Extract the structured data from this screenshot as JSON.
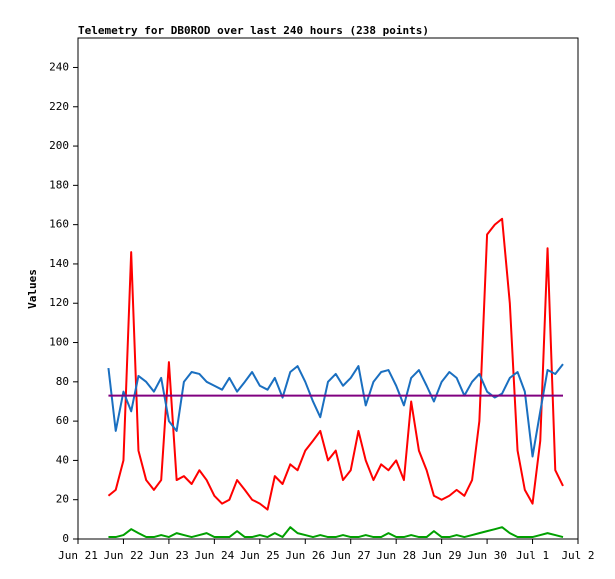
{
  "chart_data": {
    "type": "line",
    "title": "Telemetry for DB0ROD over last 240 hours (238 points)",
    "ylabel": "Values",
    "xlim": [
      0,
      11
    ],
    "xticks": [
      {
        "value": 0,
        "label": "Jun 21"
      },
      {
        "value": 1,
        "label": "Jun 22"
      },
      {
        "value": 2,
        "label": "Jun 23"
      },
      {
        "value": 3,
        "label": "Jun 24"
      },
      {
        "value": 4,
        "label": "Jun 25"
      },
      {
        "value": 5,
        "label": "Jun 26"
      },
      {
        "value": 6,
        "label": "Jun 27"
      },
      {
        "value": 7,
        "label": "Jun 28"
      },
      {
        "value": 8,
        "label": "Jun 29"
      },
      {
        "value": 9,
        "label": "Jun 30"
      },
      {
        "value": 10,
        "label": "Jul 1"
      },
      {
        "value": 11,
        "label": "Jul 2"
      }
    ],
    "ylim": [
      0,
      255
    ],
    "yticks": [
      0,
      20,
      40,
      60,
      80,
      100,
      120,
      140,
      160,
      180,
      200,
      220,
      240
    ],
    "x": [
      0.67,
      0.83,
      1.0,
      1.17,
      1.33,
      1.5,
      1.67,
      1.83,
      2.0,
      2.17,
      2.33,
      2.5,
      2.67,
      2.83,
      3.0,
      3.17,
      3.33,
      3.5,
      3.67,
      3.83,
      4.0,
      4.17,
      4.33,
      4.5,
      4.67,
      4.83,
      5.0,
      5.17,
      5.33,
      5.5,
      5.67,
      5.83,
      6.0,
      6.17,
      6.33,
      6.5,
      6.67,
      6.83,
      7.0,
      7.17,
      7.33,
      7.5,
      7.67,
      7.83,
      8.0,
      8.17,
      8.33,
      8.5,
      8.67,
      8.83,
      9.0,
      9.17,
      9.33,
      9.5,
      9.67,
      9.83,
      10.0,
      10.17,
      10.33,
      10.5,
      10.67
    ],
    "series": [
      {
        "color": "#ff0000",
        "values": [
          22,
          25,
          40,
          146,
          45,
          30,
          25,
          30,
          90,
          30,
          32,
          28,
          35,
          30,
          22,
          18,
          20,
          30,
          25,
          20,
          18,
          15,
          32,
          28,
          38,
          35,
          45,
          50,
          55,
          40,
          45,
          30,
          35,
          55,
          40,
          30,
          38,
          35,
          40,
          30,
          70,
          45,
          35,
          22,
          20,
          22,
          25,
          22,
          30,
          60,
          155,
          160,
          163,
          120,
          45,
          25,
          18,
          50,
          148,
          35,
          27
        ]
      },
      {
        "color": "#1a6fc0",
        "values": [
          87,
          55,
          75,
          65,
          83,
          80,
          75,
          82,
          60,
          55,
          80,
          85,
          84,
          80,
          78,
          76,
          82,
          75,
          80,
          85,
          78,
          76,
          82,
          72,
          85,
          88,
          80,
          70,
          62,
          80,
          84,
          78,
          82,
          88,
          68,
          80,
          85,
          86,
          78,
          68,
          82,
          86,
          78,
          70,
          80,
          85,
          82,
          73,
          80,
          84,
          75,
          72,
          74,
          82,
          85,
          75,
          42,
          65,
          86,
          84,
          89
        ]
      },
      {
        "color": "#00a000",
        "values": [
          1,
          1,
          2,
          5,
          3,
          1,
          1,
          2,
          1,
          3,
          2,
          1,
          2,
          3,
          1,
          1,
          1,
          4,
          1,
          1,
          2,
          1,
          3,
          1,
          6,
          3,
          2,
          1,
          2,
          1,
          1,
          2,
          1,
          1,
          2,
          1,
          1,
          3,
          1,
          1,
          2,
          1,
          1,
          4,
          1,
          1,
          2,
          1,
          2,
          3,
          4,
          5,
          6,
          3,
          1,
          1,
          1,
          2,
          3,
          2,
          1
        ]
      },
      {
        "color": "#800080",
        "values": [
          73,
          73,
          73,
          73,
          73,
          73,
          73,
          73,
          73,
          73,
          73,
          73,
          73,
          73,
          73,
          73,
          73,
          73,
          73,
          73,
          73,
          73,
          73,
          73,
          73,
          73,
          73,
          73,
          73,
          73,
          73,
          73,
          73,
          73,
          73,
          73,
          73,
          73,
          73,
          73,
          73,
          73,
          73,
          73,
          73,
          73,
          73,
          73,
          73,
          73,
          73,
          73,
          73,
          73,
          73,
          73,
          73,
          73,
          73,
          73,
          73
        ]
      }
    ]
  }
}
